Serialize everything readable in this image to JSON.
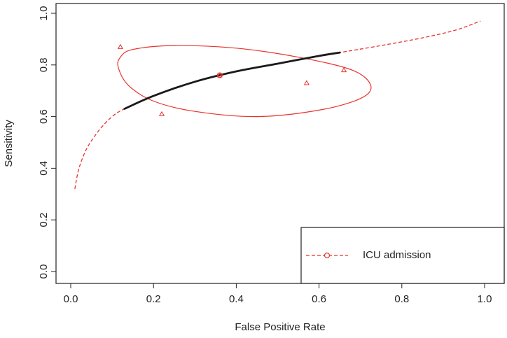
{
  "chart_data": {
    "type": "scatter",
    "xlabel": "False Positive Rate",
    "ylabel": "Sensitivity",
    "xlim": [
      0.0,
      1.0
    ],
    "ylim": [
      0.0,
      1.0
    ],
    "xticks": [
      "0.0",
      "0.2",
      "0.4",
      "0.6",
      "0.8",
      "1.0"
    ],
    "yticks": [
      "0.0",
      "0.2",
      "0.4",
      "0.6",
      "0.8",
      "1.0"
    ],
    "grid": false,
    "legend_position": "bottom-right",
    "colors": {
      "series": "#e8322c",
      "summary_curve": "#1a1a1a",
      "axis": "#222222"
    },
    "series": [
      {
        "name": "ICU admission",
        "points": [
          {
            "x": 0.12,
            "y": 0.87
          },
          {
            "x": 0.22,
            "y": 0.61
          },
          {
            "x": 0.36,
            "y": 0.76
          },
          {
            "x": 0.57,
            "y": 0.73
          },
          {
            "x": 0.66,
            "y": 0.78
          }
        ],
        "summary_point": {
          "x": 0.36,
          "y": 0.76
        },
        "sroc_curve": [
          {
            "x": 0.01,
            "y": 0.32
          },
          {
            "x": 0.02,
            "y": 0.4
          },
          {
            "x": 0.04,
            "y": 0.48
          },
          {
            "x": 0.07,
            "y": 0.55
          },
          {
            "x": 0.1,
            "y": 0.6
          },
          {
            "x": 0.13,
            "y": 0.63
          },
          {
            "x": 0.2,
            "y": 0.68
          },
          {
            "x": 0.3,
            "y": 0.735
          },
          {
            "x": 0.4,
            "y": 0.775
          },
          {
            "x": 0.5,
            "y": 0.805
          },
          {
            "x": 0.6,
            "y": 0.835
          },
          {
            "x": 0.65,
            "y": 0.848
          },
          {
            "x": 0.75,
            "y": 0.875
          },
          {
            "x": 0.85,
            "y": 0.905
          },
          {
            "x": 0.93,
            "y": 0.935
          },
          {
            "x": 0.99,
            "y": 0.97
          }
        ],
        "sroc_observed_range": [
          0.13,
          0.65
        ],
        "confidence_region": [
          {
            "x": 0.12,
            "y": 0.83
          },
          {
            "x": 0.15,
            "y": 0.86
          },
          {
            "x": 0.25,
            "y": 0.875
          },
          {
            "x": 0.4,
            "y": 0.865
          },
          {
            "x": 0.55,
            "y": 0.83
          },
          {
            "x": 0.68,
            "y": 0.78
          },
          {
            "x": 0.725,
            "y": 0.72
          },
          {
            "x": 0.7,
            "y": 0.67
          },
          {
            "x": 0.6,
            "y": 0.625
          },
          {
            "x": 0.45,
            "y": 0.6
          },
          {
            "x": 0.3,
            "y": 0.62
          },
          {
            "x": 0.2,
            "y": 0.66
          },
          {
            "x": 0.14,
            "y": 0.72
          },
          {
            "x": 0.115,
            "y": 0.79
          }
        ]
      }
    ]
  }
}
